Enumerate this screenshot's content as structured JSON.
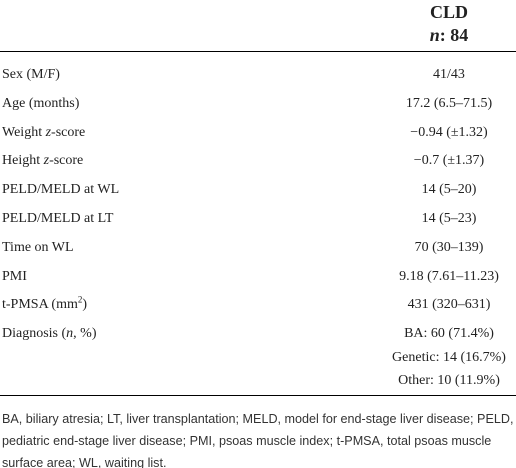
{
  "header": {
    "title": "CLD",
    "subtitle": [
      "n",
      ": 84"
    ]
  },
  "table": {
    "rows": [
      {
        "label": [
          "Sex (M/F)"
        ],
        "value": [
          "41/43"
        ]
      },
      {
        "label": [
          "Age (months)"
        ],
        "value": [
          "17.2 (6.5–71.5)"
        ]
      },
      {
        "label": [
          "Weight ",
          "z",
          "-score"
        ],
        "value": [
          "−0.94 (±1.32)"
        ]
      },
      {
        "label": [
          "Height ",
          "z",
          "-score"
        ],
        "value": [
          "−0.7 (±1.37)"
        ]
      },
      {
        "label": [
          "PELD/MELD at WL"
        ],
        "value": [
          "14 (5–20)"
        ]
      },
      {
        "label": [
          "PELD/MELD at LT"
        ],
        "value": [
          "14 (5–23)"
        ]
      },
      {
        "label": [
          "Time on WL"
        ],
        "value": [
          "70 (30–139)"
        ]
      },
      {
        "label": [
          "PMI"
        ],
        "value": [
          "9.18 (7.61–11.23)"
        ]
      },
      {
        "label": [
          "t-PMSA (mm",
          "2",
          ")"
        ],
        "value": [
          "431 (320–631)"
        ]
      },
      {
        "label": [
          "Diagnosis (",
          "n",
          ", %)"
        ],
        "value": [
          "BA: 60 (71.4%)",
          "Genetic: 14 (16.7%)",
          "Other: 10 (11.9%)"
        ]
      }
    ]
  },
  "footnote": "BA, biliary atresia; LT, liver transplantation; MELD, model for end-stage liver disease; PELD, pediatric end-stage liver disease; PMI, psoas muscle index; t-PMSA, total psoas muscle surface area; WL, waiting list."
}
